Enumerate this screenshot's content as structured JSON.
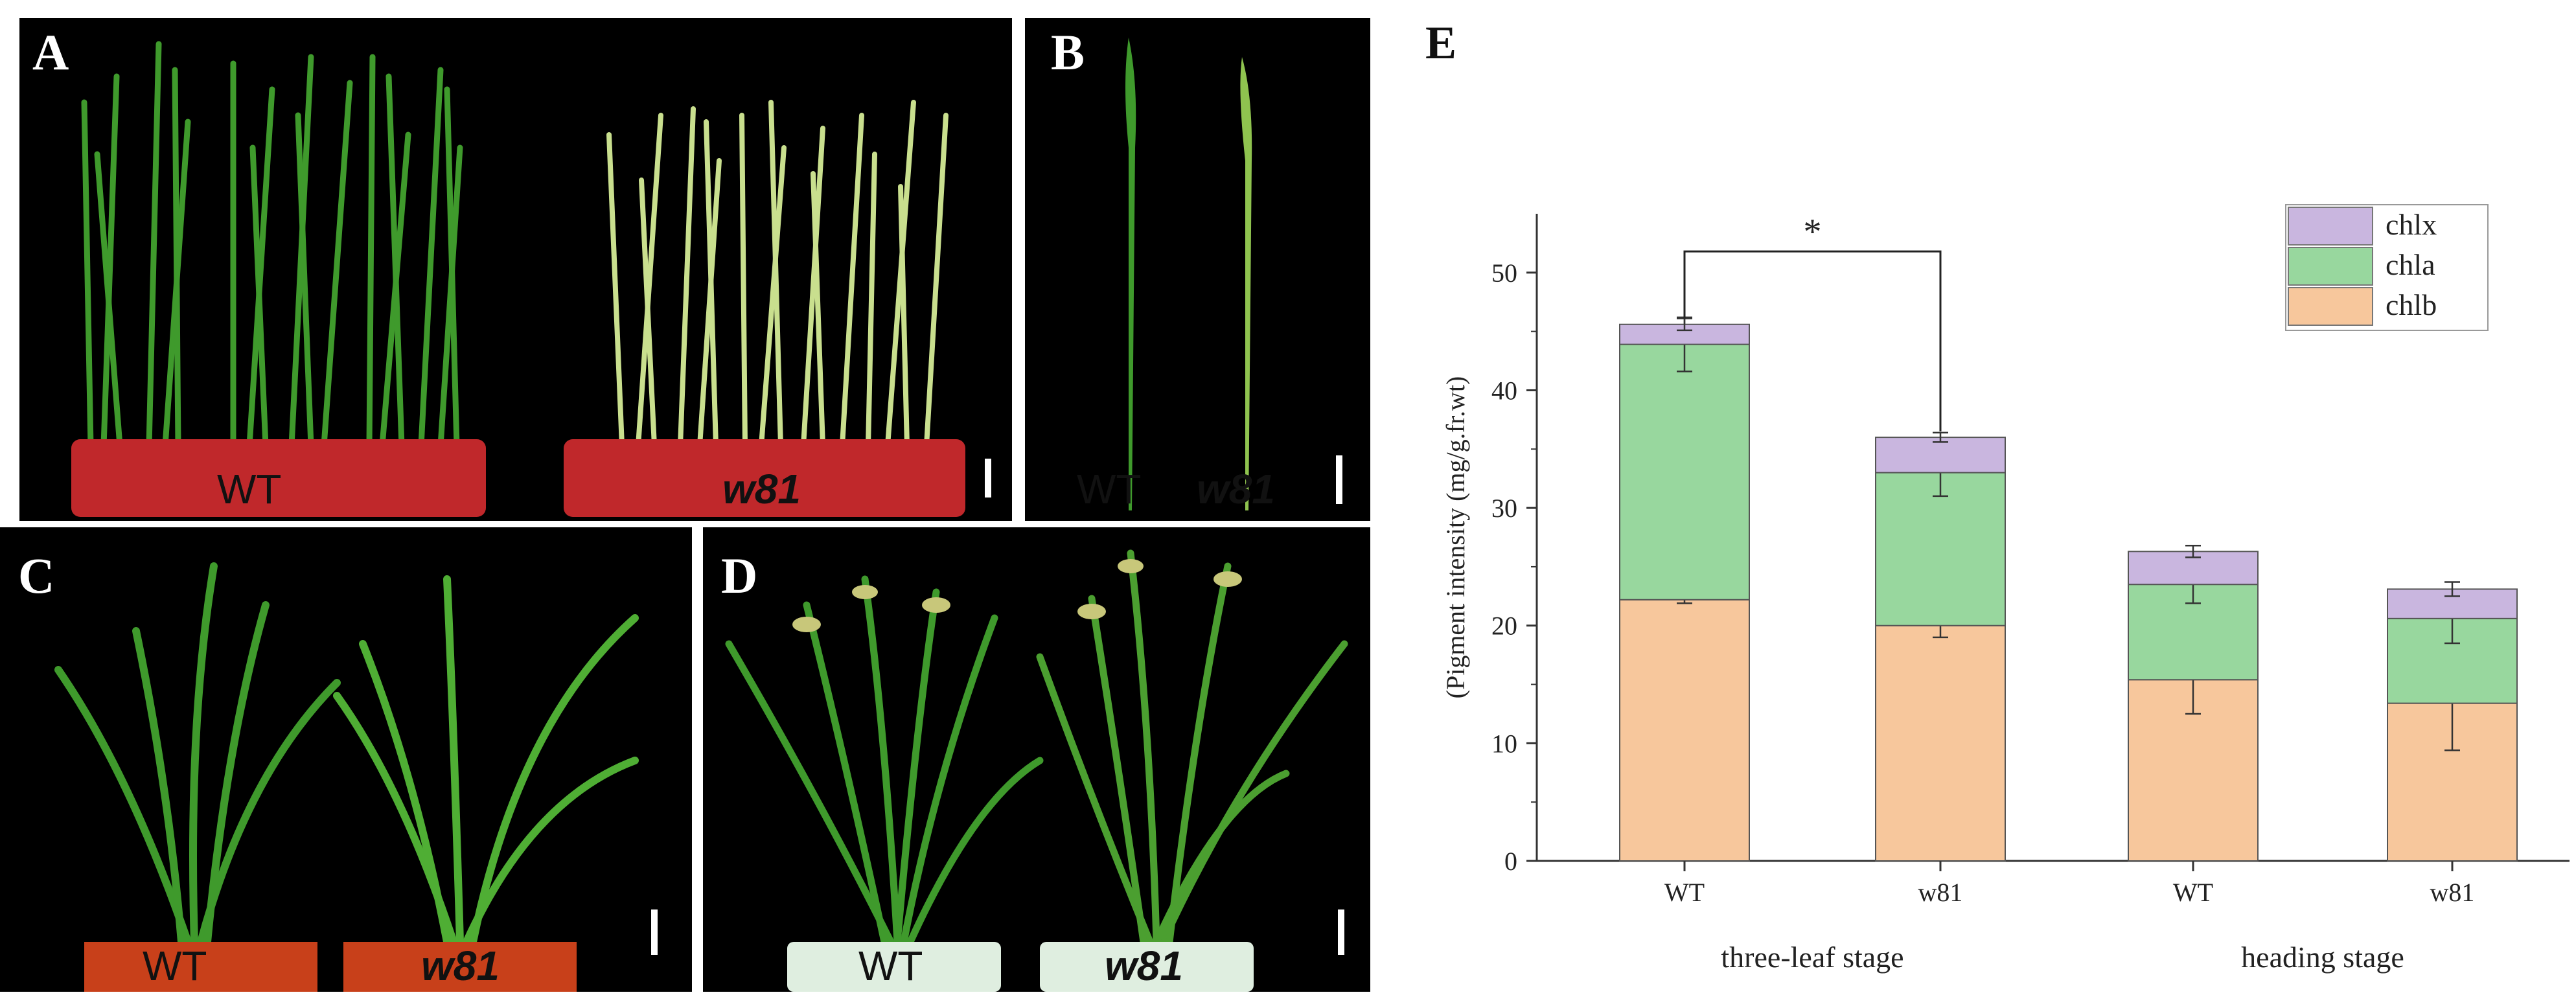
{
  "panels": {
    "A": {
      "label": "A",
      "left_caption": "WT",
      "right_caption": "w81"
    },
    "B": {
      "label": "B",
      "left_caption": "WT",
      "right_caption": "w81"
    },
    "C": {
      "label": "C",
      "left_caption": "WT",
      "right_caption": "w81"
    },
    "D": {
      "label": "D",
      "left_caption": "WT",
      "right_caption": "w81"
    },
    "E": {
      "label": "E"
    }
  },
  "colors": {
    "chlb": "#f7c79c",
    "chla": "#98d79e",
    "chlx": "#c9b6df",
    "leaf_green": "#3f9a2c",
    "pale_leaf": "#c9df8e",
    "pot_red": "#c0282b",
    "pot_orange": "#c8401a",
    "pot_white": "#dfeee0"
  },
  "chart_data": {
    "type": "bar",
    "stacked": true,
    "categories": [
      "WT",
      "w81",
      "WT",
      "w81"
    ],
    "groups": [
      {
        "label": "three-leaf stage",
        "categories": [
          "WT",
          "w81"
        ]
      },
      {
        "label": "heading stage",
        "categories": [
          "WT",
          "w81"
        ]
      }
    ],
    "series": [
      {
        "name": "chlb",
        "values": [
          22.2,
          20.0,
          15.4,
          13.4
        ],
        "errors": [
          0.3,
          1.0,
          2.9,
          4.0
        ]
      },
      {
        "name": "chla",
        "values": [
          21.7,
          13.0,
          8.1,
          7.2
        ],
        "errors": [
          2.3,
          2.0,
          1.6,
          2.1
        ]
      },
      {
        "name": "chlx",
        "values": [
          1.7,
          3.0,
          2.8,
          2.5
        ],
        "errors": [
          0.5,
          0.4,
          0.5,
          0.6
        ]
      }
    ],
    "ylabel": "(Pigment intensity (mg/g.fr.wt)",
    "xlabel": "",
    "ylim": [
      0,
      55
    ],
    "yticks": [
      0,
      10,
      20,
      30,
      40,
      50
    ],
    "legend": [
      "chlx",
      "chla",
      "chlb"
    ],
    "legend_position": "top-right",
    "significance": {
      "between": [
        "WT",
        "w81"
      ],
      "group": "three-leaf stage",
      "label": "*"
    }
  }
}
